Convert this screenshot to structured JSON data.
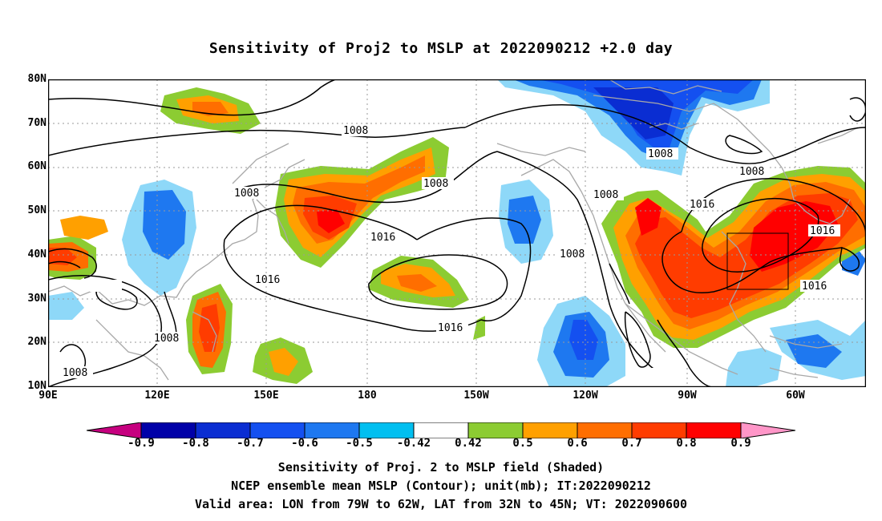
{
  "title": "Sensitivity of Proj2 to MSLP at 2022090212 +2.0 day",
  "lat_labels": [
    "80N",
    "70N",
    "60N",
    "50N",
    "40N",
    "30N",
    "20N",
    "10N"
  ],
  "lon_labels": [
    "90E",
    "120E",
    "150E",
    "180",
    "150W",
    "120W",
    "90W",
    "60W"
  ],
  "contour_labels": [
    "1008",
    "1008",
    "1008",
    "1008",
    "1008",
    "1008",
    "1008",
    "1008",
    "1008",
    "1016",
    "1016",
    "1016",
    "1016",
    "1016",
    "1016"
  ],
  "colorbar": {
    "labels": [
      "-0.9",
      "-0.8",
      "-0.7",
      "-0.6",
      "-0.5",
      "-0.42",
      "0.42",
      "0.5",
      "0.6",
      "0.7",
      "0.8",
      "0.9"
    ],
    "colors": [
      "#c6007f",
      "#0000a8",
      "#0a2dd2",
      "#1450f0",
      "#1e78f0",
      "#00bff0",
      "#ffffff",
      "#8ccc32",
      "#ffa000",
      "#ff6e00",
      "#ff3c00",
      "#ff0000",
      "#ff96c8"
    ]
  },
  "captions": {
    "line1": "Sensitivity of Proj. 2 to MSLP field (Shaded)",
    "line2": "NCEP ensemble mean MSLP (Contour); unit(mb); IT:2022090212",
    "line3": "Valid area: LON from 79W to 62W, LAT from 32N to 45N; VT: 2022090600"
  }
}
